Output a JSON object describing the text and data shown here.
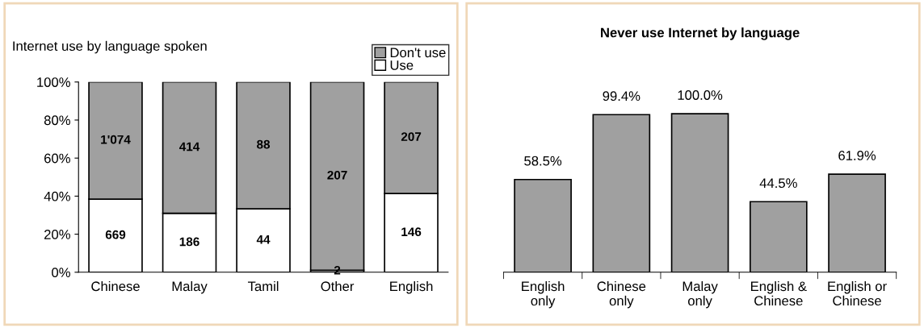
{
  "chart_data": [
    {
      "type": "bar",
      "title": "Internet use by language spoken",
      "stacked": true,
      "categories": [
        "Chinese",
        "Malay",
        "Tamil",
        "Other",
        "English"
      ],
      "series": [
        {
          "name": "Use",
          "color": "#ffffff",
          "values": [
            38.4,
            31.0,
            33.3,
            1.0,
            41.4
          ]
        },
        {
          "name": "Don't use",
          "color": "#a0a0a0",
          "values": [
            61.6,
            69.0,
            66.7,
            99.0,
            58.6
          ]
        }
      ],
      "annotations": [
        "669",
        "186",
        "44",
        "2",
        "146",
        "1'074",
        "414",
        "88",
        "207",
        "207"
      ],
      "ylim": [
        0,
        100
      ],
      "yticks": [
        {
          "value": 0,
          "label": "0%"
        },
        {
          "value": 20,
          "label": "20%"
        },
        {
          "value": 40,
          "label": "40%"
        },
        {
          "value": 60,
          "label": "60%"
        },
        {
          "value": 80,
          "label": "80%"
        },
        {
          "value": 100,
          "label": "100%"
        }
      ],
      "legend": "top right",
      "grid": false
    },
    {
      "type": "bar",
      "title": "Never use Internet by language",
      "categories": [
        "English\nonly",
        "Chinese\nonly",
        "Malay\nonly",
        "English &\nChinese",
        "English or\nChinese"
      ],
      "values": [
        58.5,
        99.4,
        100.0,
        44.5,
        61.9
      ],
      "color": "#a0a0a0",
      "value_labels": [
        "58.5%",
        "99.4%",
        "100.0%",
        "44.5%",
        "61.9%"
      ],
      "tick_labels": "x",
      "grid": false
    }
  ]
}
